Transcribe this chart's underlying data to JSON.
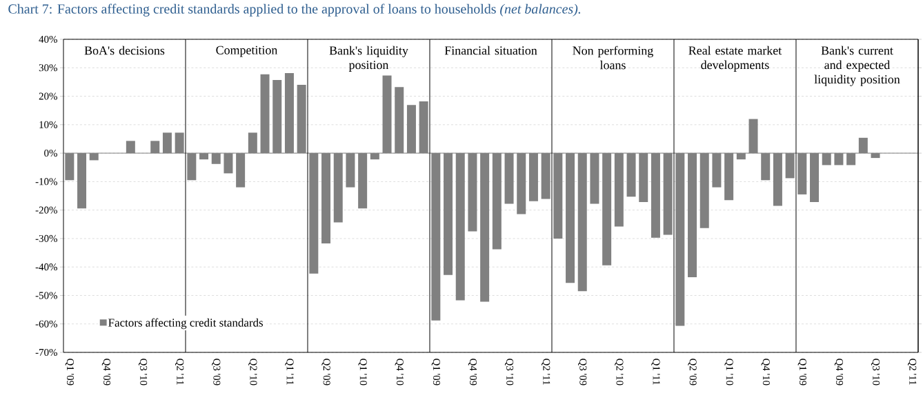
{
  "chart_data": {
    "type": "bar",
    "title": "Chart 7: Factors affecting credit standards applied to the approval of loans to households *(net balances).*",
    "categories": [
      "Q1 '09",
      null,
      null,
      "Q4 '09",
      null,
      null,
      "Q3 '10",
      null,
      null,
      "Q2 '11",
      null,
      null,
      "Q3 '09",
      null,
      null,
      "Q2 '10",
      null,
      null,
      "Q1 '11",
      null,
      null,
      "Q2 '09",
      null,
      null,
      "Q1 '10",
      null,
      null,
      "Q4 '10",
      null,
      null,
      "Q1 '09",
      null,
      null,
      "Q4 '09",
      null,
      null,
      "Q3 '10",
      null,
      null,
      "Q2 '11",
      null,
      null,
      "Q3 '09",
      null,
      null,
      "Q2 '10",
      null,
      null,
      "Q1 '11",
      null,
      null,
      "Q2 '09",
      null,
      null,
      "Q1 '10",
      null,
      null,
      "Q4 '10",
      null,
      null,
      "Q1 '09",
      null,
      null,
      "Q4 '09",
      null,
      null,
      "Q3 '10",
      null,
      null,
      "Q2 '11"
    ],
    "series": [
      {
        "name": "Factors affecting credit standards",
        "color": "#808080",
        "values": [
          -9.5,
          -19.4,
          -2.5,
          0,
          0,
          4.3,
          0,
          4.3,
          7.2,
          7.2,
          -9.5,
          -2.2,
          -3.8,
          -7.1,
          -12,
          7.2,
          27.7,
          25.7,
          28.1,
          24,
          -42.3,
          -31.7,
          -24.3,
          -12,
          -19.4,
          -2.2,
          27.3,
          23.2,
          16.9,
          18.2,
          -58.8,
          -42.8,
          -51.7,
          -27.5,
          -52.2,
          -33.8,
          -17.8,
          -21.4,
          -16.9,
          -16.1,
          -30,
          -45.6,
          -48.5,
          -17.8,
          -39.4,
          -25.8,
          -15.3,
          -17.2,
          -29.7,
          -28.7,
          -60.7,
          -43.6,
          -26.3,
          -12,
          -16.5,
          -2.2,
          12,
          -9.5,
          -18.5,
          -8.8,
          -14.5,
          -17.2,
          -4.2,
          -4.2,
          -4.2,
          5.4,
          -1.7,
          null,
          null,
          null
        ]
      }
    ],
    "ylim": [
      -70,
      40
    ],
    "yticks": [
      {
        "value": -70,
        "label": "-70%"
      },
      {
        "value": -60,
        "label": "-60%"
      },
      {
        "value": -50,
        "label": "-50%"
      },
      {
        "value": -40,
        "label": "-40%"
      },
      {
        "value": -30,
        "label": "-30%"
      },
      {
        "value": -20,
        "label": "-20%"
      },
      {
        "value": -10,
        "label": "-10%"
      },
      {
        "value": 0,
        "label": "0%"
      },
      {
        "value": 10,
        "label": "10%"
      },
      {
        "value": 20,
        "label": "20%"
      },
      {
        "value": 30,
        "label": "30%"
      },
      {
        "value": 40,
        "label": "40%"
      }
    ],
    "grid": "y",
    "legend": "bottom left",
    "annotations": [
      "BoA's decisions",
      "Competition",
      "Bank's liquidity position",
      "Financial situation",
      "Non performing loans",
      "Real estate market developments",
      "Bank's current and expected liquidity position"
    ]
  }
}
